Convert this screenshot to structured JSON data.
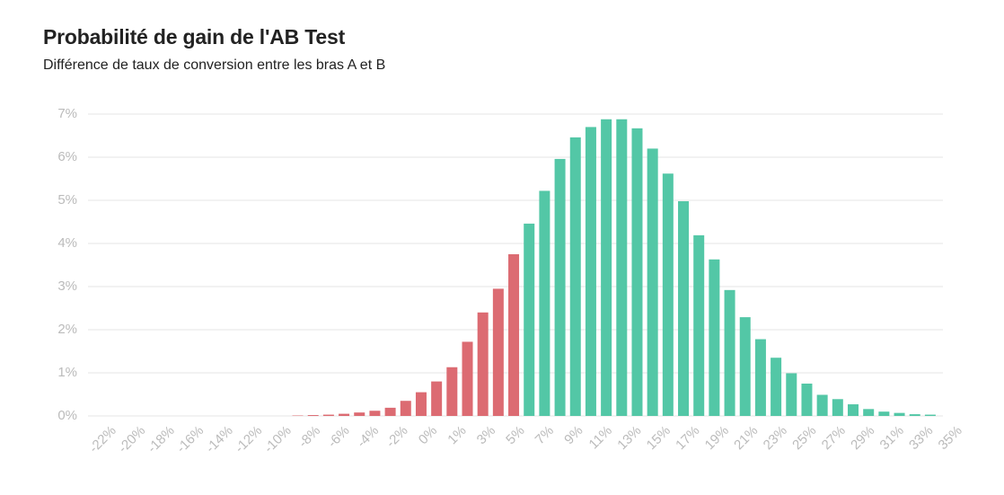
{
  "chart_data": {
    "type": "bar",
    "title": "Probabilité de gain de l'AB Test",
    "subtitle": "Différence de taux de conversion entre les bras A et B",
    "xlabel": "",
    "ylabel": "",
    "ylim": [
      0,
      7
    ],
    "grid": true,
    "colors": {
      "negative": "#dc6b72",
      "positive": "#53c7a6",
      "grid": "#e6e6e6",
      "tick_text": "#bbbbbb"
    },
    "y_ticks": [
      "0%",
      "1%",
      "2%",
      "3%",
      "4%",
      "5%",
      "6%",
      "7%"
    ],
    "x_tick_labels": [
      "-22%",
      "-20%",
      "-18%",
      "-16%",
      "-14%",
      "-12%",
      "-10%",
      "-8%",
      "-6%",
      "-4%",
      "-2%",
      "0%",
      "1%",
      "3%",
      "5%",
      "7%",
      "9%",
      "11%",
      "13%",
      "15%",
      "17%",
      "19%",
      "21%",
      "23%",
      "25%",
      "27%",
      "29%",
      "31%",
      "33%",
      "35%"
    ],
    "series": [
      {
        "values": [
          0,
          0,
          0,
          0,
          0,
          0,
          0,
          0,
          0,
          0,
          0,
          0,
          0,
          0,
          0.01,
          0.02,
          0.03,
          0.05,
          0.08,
          0.12,
          0.19,
          0.35,
          0.55,
          0.8,
          1.13,
          1.72,
          2.4,
          2.95,
          3.75
        ],
        "sign": "negative"
      },
      {
        "values": [
          4.46,
          5.22,
          5.96,
          6.46,
          6.7,
          6.88,
          6.88,
          6.67,
          6.2,
          5.62,
          4.98,
          4.19,
          3.63,
          2.92,
          2.29,
          1.78,
          1.35,
          0.99,
          0.75,
          0.49,
          0.39,
          0.27,
          0.16,
          0.1,
          0.07,
          0.04,
          0.03,
          0.02,
          0.01,
          0.01,
          0.005,
          0,
          0,
          0,
          0,
          0,
          0,
          0,
          0,
          0,
          0,
          0,
          0,
          0,
          0,
          0,
          0,
          0,
          0,
          0,
          0,
          0,
          0,
          0,
          0,
          0,
          0
        ]
      }
    ]
  }
}
